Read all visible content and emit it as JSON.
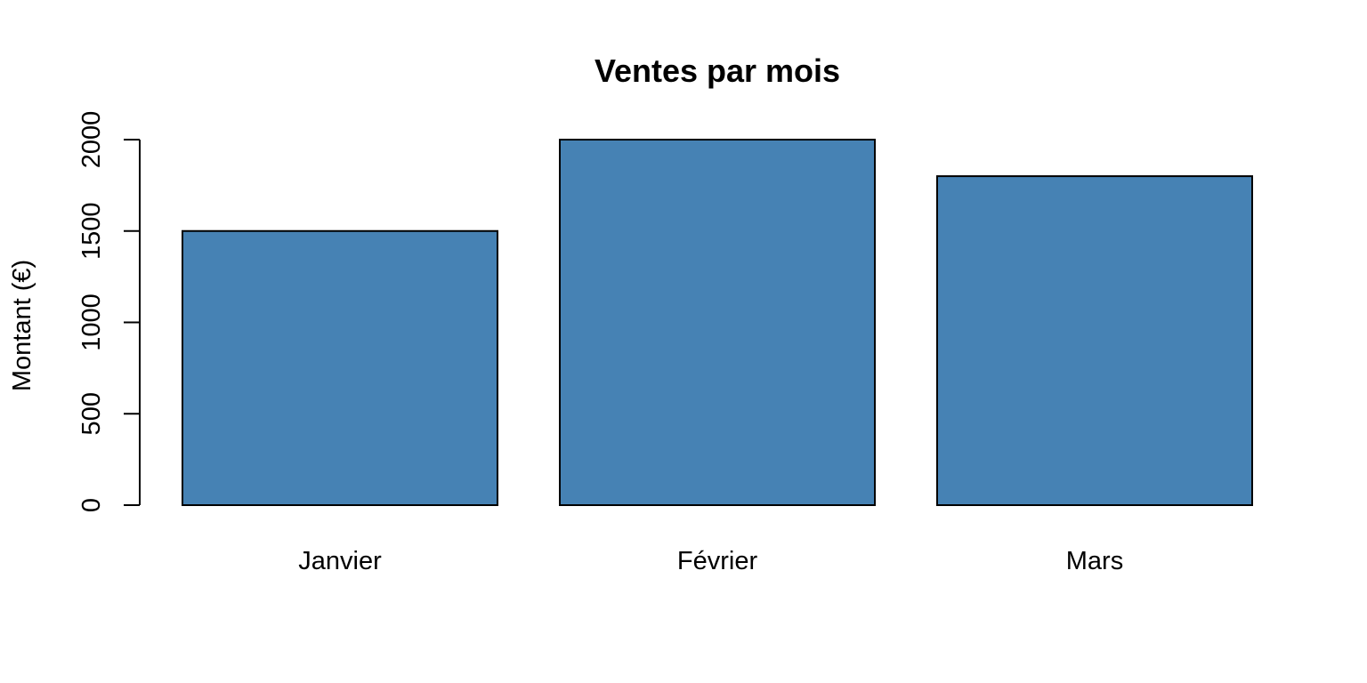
{
  "chart_data": {
    "type": "bar",
    "title": "Ventes par mois",
    "xlabel": "",
    "ylabel": "Montant (€)",
    "categories": [
      "Janvier",
      "Février",
      "Mars"
    ],
    "values": [
      1500,
      2000,
      1800
    ],
    "ylim": [
      0,
      2000
    ],
    "yticks": [
      0,
      500,
      1000,
      1500,
      2000
    ],
    "bar_color": "#4682B4",
    "grid": false,
    "legend": "none"
  }
}
